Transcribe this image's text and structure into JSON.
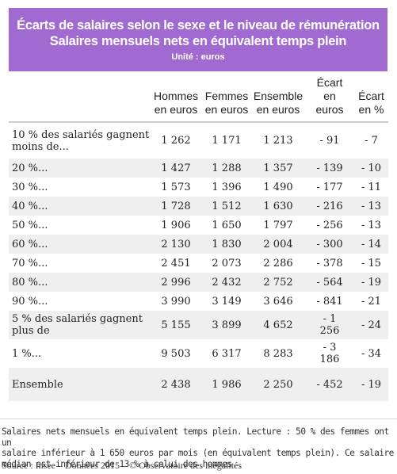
{
  "header": {
    "title": "Écarts de salaires selon le sexe et le niveau de rémunération",
    "subtitle": "Salaires mensuels nets en équivalent temps plein",
    "unit": "Unité : euros"
  },
  "table": {
    "columns": [
      {
        "line1": "Hommes",
        "line2": "en euros",
        "line3": ""
      },
      {
        "line1": "Femmes",
        "line2": "en euros",
        "line3": ""
      },
      {
        "line1": "Ensemble",
        "line2": "en euros",
        "line3": ""
      },
      {
        "line1": "Écart",
        "line2": "en",
        "line3": "euros"
      },
      {
        "line1": "Écart",
        "line2": "en %",
        "line3": ""
      }
    ],
    "rows": [
      {
        "label_l1": "10 % des salariés gagnent",
        "label_l2": "moins de...",
        "hommes": "1 262",
        "femmes": "1 171",
        "ensemble": "1 213",
        "ecart_l1": "- 91",
        "ecart_l2": "",
        "pct": "- 7"
      },
      {
        "label_l1": "20 %...",
        "label_l2": "",
        "hommes": "1 427",
        "femmes": "1 288",
        "ensemble": "1 357",
        "ecart_l1": "- 139",
        "ecart_l2": "",
        "pct": "- 10"
      },
      {
        "label_l1": "30 %...",
        "label_l2": "",
        "hommes": "1 573",
        "femmes": "1 396",
        "ensemble": "1 490",
        "ecart_l1": "- 177",
        "ecart_l2": "",
        "pct": "- 11"
      },
      {
        "label_l1": "40 %...",
        "label_l2": "",
        "hommes": "1 728",
        "femmes": "1 512",
        "ensemble": "1 630",
        "ecart_l1": "- 216",
        "ecart_l2": "",
        "pct": "- 13"
      },
      {
        "label_l1": "50 %...",
        "label_l2": "",
        "hommes": "1 906",
        "femmes": "1 650",
        "ensemble": "1 797",
        "ecart_l1": "- 256",
        "ecart_l2": "",
        "pct": "- 13"
      },
      {
        "label_l1": "60 %...",
        "label_l2": "",
        "hommes": "2 130",
        "femmes": "1 830",
        "ensemble": "2 004",
        "ecart_l1": "- 300",
        "ecart_l2": "",
        "pct": "- 14"
      },
      {
        "label_l1": "70 %...",
        "label_l2": "",
        "hommes": "2 451",
        "femmes": "2 073",
        "ensemble": "2 286",
        "ecart_l1": "- 378",
        "ecart_l2": "",
        "pct": "- 15"
      },
      {
        "label_l1": "80 %...",
        "label_l2": "",
        "hommes": "2 996",
        "femmes": "2 432",
        "ensemble": "2 752",
        "ecart_l1": "- 564",
        "ecart_l2": "",
        "pct": "- 19"
      },
      {
        "label_l1": "90 %...",
        "label_l2": "",
        "hommes": "3 990",
        "femmes": "3 149",
        "ensemble": "3 646",
        "ecart_l1": "- 841",
        "ecart_l2": "",
        "pct": "- 21"
      },
      {
        "label_l1": "5 % des salariés gagnent",
        "label_l2": "plus de",
        "hommes": "5 155",
        "femmes": "3 899",
        "ensemble": "4 652",
        "ecart_l1": "- 1",
        "ecart_l2": "256",
        "pct": "- 24"
      },
      {
        "label_l1": "1 %...",
        "label_l2": "",
        "hommes": "9 503",
        "femmes": "6 317",
        "ensemble": "8 283",
        "ecart_l1": "- 3",
        "ecart_l2": "186",
        "pct": "- 34"
      },
      {
        "label_l1": "Ensemble",
        "label_l2": "",
        "hommes": "2 438",
        "femmes": "1 986",
        "ensemble": "2 250",
        "ecart_l1": "- 452",
        "ecart_l2": "",
        "pct": "- 19"
      }
    ]
  },
  "footer": {
    "note_l1": "Salaires nets mensuels en équivalent temps plein. Lecture : 50 % des femmes ont un",
    "note_l2": "salaire inférieur à 1 650 euros par mois (en équivalent temps plein). Ce salaire",
    "note_l3": "médian est inférieur de 13 % à celui des hommes.",
    "source": "Source : Insee – Données 2015 – © Observatoire des inégalités"
  },
  "colors": {
    "banner": "#a06ad1",
    "row_alt": "#efefef"
  }
}
